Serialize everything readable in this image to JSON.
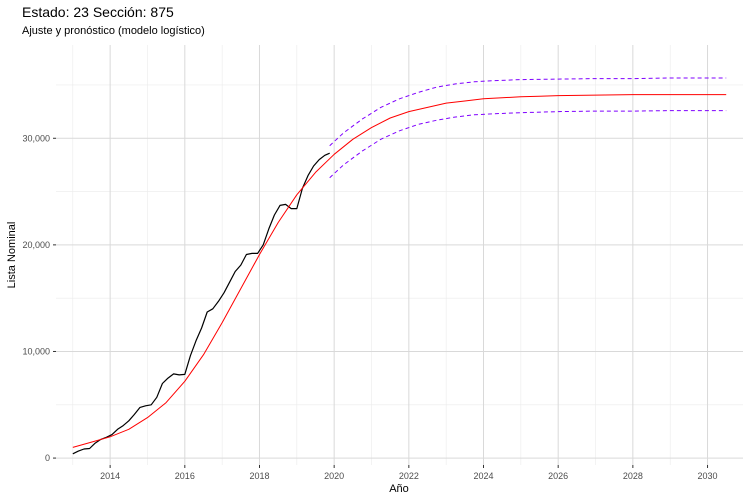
{
  "chart_data": {
    "type": "line",
    "title": "Estado: 23 Sección: 875",
    "subtitle": "Ajuste y pronóstico (modelo logístico)",
    "xlabel": "Año",
    "ylabel": "Lista Nominal",
    "xlim": [
      2012.55,
      2030.95
    ],
    "ylim": [
      -650,
      38750
    ],
    "x_ticks": [
      2014,
      2016,
      2018,
      2020,
      2022,
      2024,
      2026,
      2028,
      2030
    ],
    "x_tick_labels": [
      "2014",
      "2016",
      "2018",
      "2020",
      "2022",
      "2024",
      "2026",
      "2028",
      "2030"
    ],
    "y_ticks": [
      0,
      10000,
      20000,
      30000
    ],
    "y_tick_labels": [
      "0",
      "10,000",
      "20,000",
      "30,000"
    ],
    "grid": true,
    "legend": "none",
    "colors": {
      "observed": "#000000",
      "fitted": "#ff0000",
      "bounds": "#7f00ff",
      "grid_major": "#d9d9d9",
      "grid_minor": "#ebebeb"
    },
    "series": [
      {
        "key": "observed",
        "style": "solid",
        "x": [
          2013.0,
          2013.15,
          2013.3,
          2013.45,
          2013.6,
          2013.75,
          2013.9,
          2014.05,
          2014.2,
          2014.35,
          2014.5,
          2014.65,
          2014.8,
          2014.95,
          2015.1,
          2015.25,
          2015.4,
          2015.55,
          2015.7,
          2015.85,
          2016.0,
          2016.15,
          2016.3,
          2016.45,
          2016.6,
          2016.75,
          2016.9,
          2017.05,
          2017.2,
          2017.35,
          2017.5,
          2017.65,
          2017.8,
          2017.95,
          2018.1,
          2018.25,
          2018.4,
          2018.55,
          2018.7,
          2018.85,
          2019.0,
          2019.15,
          2019.3,
          2019.45,
          2019.6,
          2019.75,
          2019.88
        ],
        "values": [
          400,
          650,
          850,
          900,
          1400,
          1750,
          1950,
          2200,
          2700,
          3050,
          3500,
          4100,
          4750,
          4900,
          5000,
          5700,
          7000,
          7500,
          7900,
          7800,
          7850,
          9600,
          11000,
          12200,
          13700,
          14000,
          14700,
          15500,
          16500,
          17500,
          18100,
          19100,
          19200,
          19200,
          20000,
          21500,
          22800,
          23700,
          23800,
          23400,
          23400,
          25300,
          26500,
          27400,
          28000,
          28400,
          28600
        ]
      },
      {
        "key": "fitted",
        "style": "solid",
        "x": [
          2013.0,
          2013.5,
          2014.0,
          2014.5,
          2015.0,
          2015.5,
          2016.0,
          2016.5,
          2017.0,
          2017.5,
          2018.0,
          2018.5,
          2019.0,
          2019.5,
          2020.0,
          2020.5,
          2021.0,
          2021.5,
          2022.0,
          2022.5,
          2023.0,
          2023.5,
          2024.0,
          2024.5,
          2025.0,
          2025.5,
          2026.0,
          2027.0,
          2028.0,
          2029.0,
          2030.5
        ],
        "values": [
          1000,
          1500,
          2000,
          2700,
          3800,
          5200,
          7200,
          9700,
          12700,
          15900,
          19100,
          22100,
          24700,
          26800,
          28500,
          29900,
          31000,
          31900,
          32500,
          32900,
          33300,
          33500,
          33700,
          33800,
          33900,
          33950,
          34000,
          34050,
          34100,
          34100,
          34100
        ]
      },
      {
        "key": "upper",
        "style": "dashed",
        "x": [
          2019.88,
          2020.25,
          2020.75,
          2021.25,
          2021.75,
          2022.25,
          2022.75,
          2023.25,
          2023.75,
          2024.25,
          2025.0,
          2026.0,
          2027.0,
          2028.0,
          2029.0,
          2030.5
        ],
        "values": [
          29300,
          30500,
          31800,
          32900,
          33700,
          34300,
          34800,
          35100,
          35300,
          35400,
          35500,
          35550,
          35600,
          35600,
          35650,
          35650
        ]
      },
      {
        "key": "lower",
        "style": "dashed",
        "x": [
          2019.88,
          2020.25,
          2020.75,
          2021.25,
          2021.75,
          2022.25,
          2022.75,
          2023.25,
          2023.75,
          2024.25,
          2025.0,
          2026.0,
          2027.0,
          2028.0,
          2029.0,
          2030.5
        ],
        "values": [
          26300,
          27500,
          28800,
          29900,
          30700,
          31300,
          31700,
          32000,
          32200,
          32300,
          32400,
          32500,
          32550,
          32550,
          32600,
          32600
        ]
      }
    ]
  }
}
